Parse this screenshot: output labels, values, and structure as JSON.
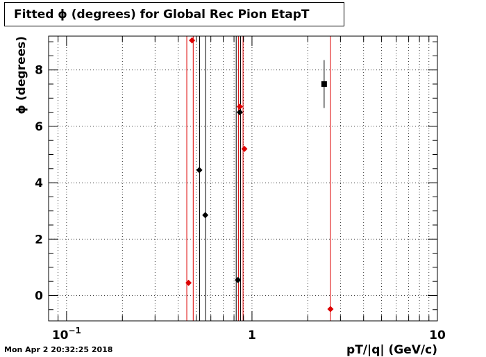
{
  "title": "Fitted ϕ (degrees) for Global Rec Pion EtapT",
  "timestamp": "Mon Apr  2 20:32:25 2018",
  "chart_data": {
    "type": "scatter",
    "title": "Fitted ϕ (degrees) for Global Rec Pion EtapT",
    "xlabel": "pT/|q| (GeV/c)",
    "ylabel": "ϕ (degrees)",
    "x_scale": "log",
    "xlim": [
      0.08,
      10
    ],
    "ylim": [
      -0.9,
      9.2
    ],
    "grid": true,
    "x_tick_labels": [
      {
        "value": 0.1,
        "base": "10",
        "exp": "−1"
      },
      {
        "value": 1,
        "base": "1",
        "exp": ""
      },
      {
        "value": 10,
        "base": "10",
        "exp": ""
      }
    ],
    "y_ticks": [
      0,
      2,
      4,
      6,
      8
    ],
    "y_tick_labels": [
      "0",
      "2",
      "4",
      "6",
      "8"
    ],
    "series": [
      {
        "color": "#000000",
        "marker": "diamond",
        "points": [
          {
            "x": 0.52,
            "y": 4.45,
            "yerr": 0
          },
          {
            "x": 0.56,
            "y": 2.85,
            "yerr": 0
          },
          {
            "x": 0.84,
            "y": 0.55,
            "yerr": 0
          },
          {
            "x": 0.86,
            "y": 6.5,
            "yerr": 0
          }
        ]
      },
      {
        "color": "#000000",
        "marker": "square",
        "points": [
          {
            "x": 2.45,
            "y": 7.5,
            "yerr": 0.85
          }
        ]
      },
      {
        "color": "#dd0000",
        "marker": "diamond",
        "points": [
          {
            "x": 0.455,
            "y": 0.45,
            "yerr": 0
          },
          {
            "x": 0.475,
            "y": 9.05,
            "yerr": 0
          },
          {
            "x": 0.86,
            "y": 6.7,
            "yerr": 0
          },
          {
            "x": 0.91,
            "y": 5.2,
            "yerr": 0
          },
          {
            "x": 2.65,
            "y": -0.48,
            "yerr": 0
          }
        ]
      }
    ],
    "vertical_lines": [
      {
        "x": 0.445,
        "color": "#dd0000"
      },
      {
        "x": 0.482,
        "color": "#dd0000"
      },
      {
        "x": 0.522,
        "color": "#000000"
      },
      {
        "x": 0.562,
        "color": "#000000"
      },
      {
        "x": 0.822,
        "color": "#000000"
      },
      {
        "x": 0.845,
        "color": "#dd0000"
      },
      {
        "x": 0.868,
        "color": "#000000"
      },
      {
        "x": 0.895,
        "color": "#dd0000"
      },
      {
        "x": 2.65,
        "color": "#dd0000"
      }
    ]
  }
}
